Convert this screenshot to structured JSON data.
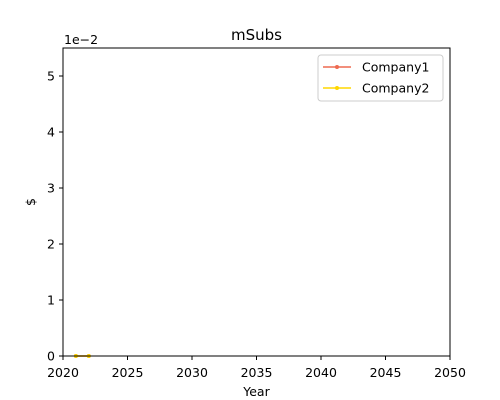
{
  "chart_data": {
    "type": "line",
    "title": "mSubs",
    "xlabel": "Year",
    "ylabel": "$",
    "y_multiplier_label": "1e−2",
    "y_multiplier": 0.01,
    "xlim": [
      2020,
      2050
    ],
    "ylim": [
      0,
      0.055
    ],
    "x_ticks": [
      2020,
      2025,
      2030,
      2035,
      2040,
      2045,
      2050
    ],
    "y_ticks": [
      0,
      0.01,
      0.02,
      0.03,
      0.04,
      0.05
    ],
    "grid": false,
    "legend_position": "top-right",
    "series": [
      {
        "name": "Company1",
        "color": "#ee6a50",
        "x": [
          2021,
          2022
        ],
        "y": [
          0,
          0
        ]
      },
      {
        "name": "Company2",
        "color": "#ffd700",
        "x": [
          2021,
          2022
        ],
        "y": [
          0,
          0
        ]
      }
    ]
  }
}
